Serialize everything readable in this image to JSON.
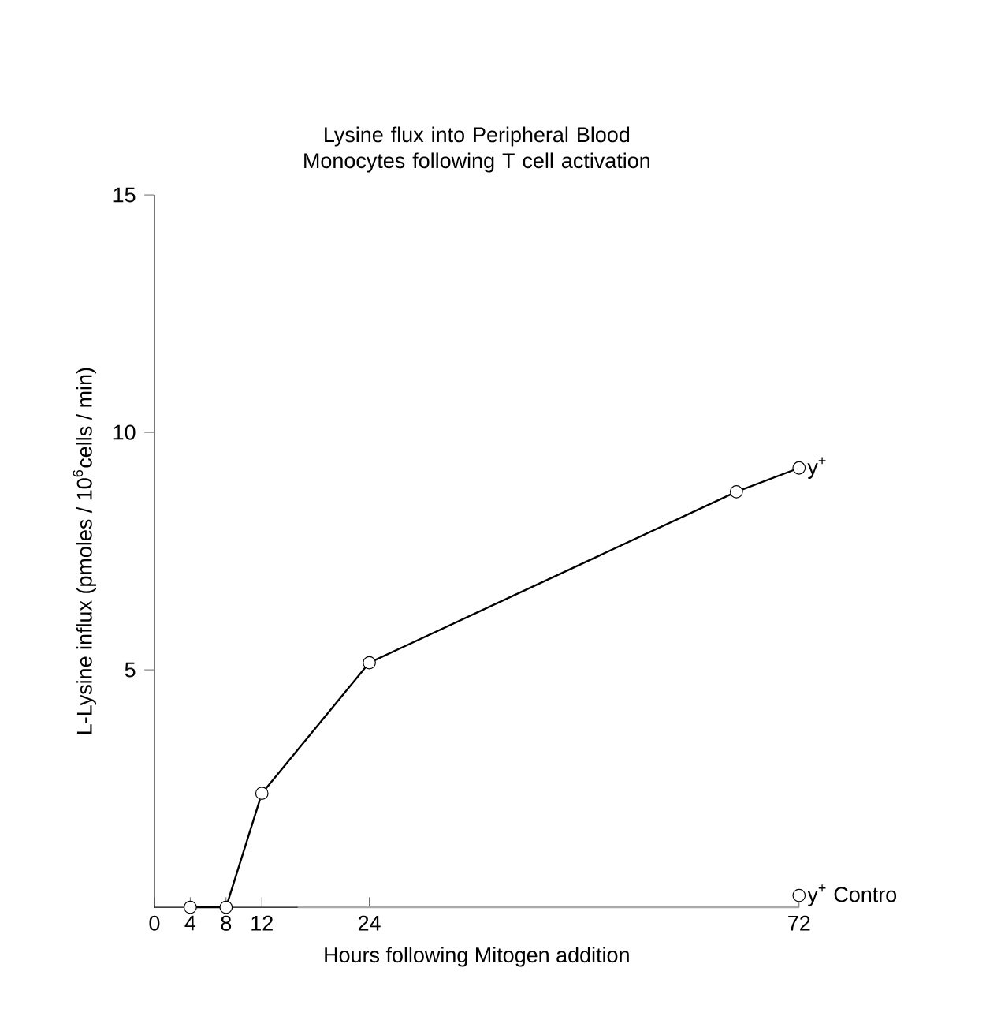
{
  "chart_data": {
    "type": "line",
    "title": "Lysine flux into Peripheral Blood Monocytes following T cell activation",
    "xlabel": "Hours following Mitogen addition",
    "ylabel": "L-Lysine influx (pmoles / 10$^{6}$cells / min)",
    "xlim": [
      0,
      72
    ],
    "xticks": [
      0,
      4,
      8,
      12,
      24,
      72
    ],
    "ylim": [
      0,
      15
    ],
    "yticks": [
      5,
      10,
      15
    ],
    "marker": "circle",
    "line_style": "solid",
    "grid": false,
    "series": [
      {
        "name": "y$^{+}$",
        "color": "#000000",
        "x": [
          4,
          8,
          12,
          24,
          65,
          72
        ],
        "values": [
          0,
          0,
          2.4,
          5.15,
          8.75,
          9.25
        ]
      },
      {
        "type": "line",
        "marker": "none",
        "color": "#aaaaaa",
        "x": [
          16,
          72
        ],
        "values": [
          0,
          0
        ]
      },
      {
        "type": "scatter",
        "name": "y$^{+}$ Contro",
        "color": "#000000",
        "x": [
          72
        ],
        "values": [
          0.25
        ]
      }
    ]
  }
}
